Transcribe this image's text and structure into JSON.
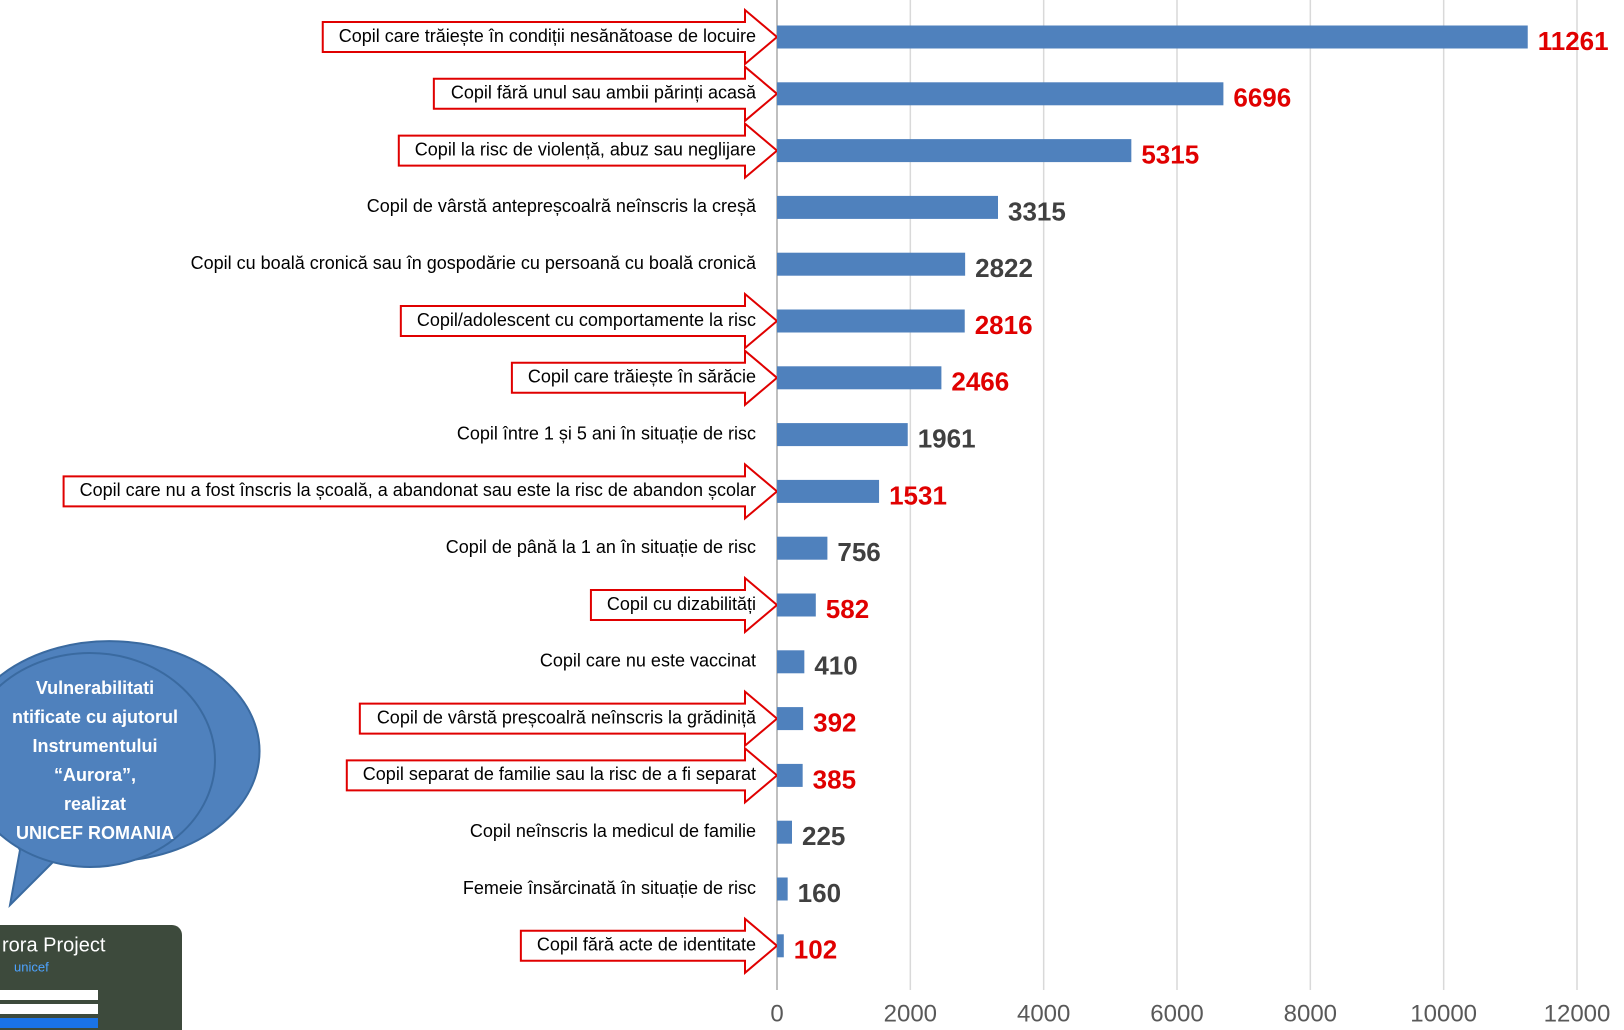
{
  "chart_data": {
    "type": "bar",
    "orientation": "horizontal",
    "categories": [
      "Copil care trăiește în condiții nesănătoase de locuire",
      "Copil fără unul sau ambii părinți acasă",
      "Copil la risc de violență, abuz sau neglijare",
      "Copil de vârstă antepreșcoalră neînscris la creșă",
      "Copil cu boală cronică sau în gospodărie cu persoană cu boală cronică",
      "Copil/adolescent cu comportamente la risc",
      "Copil care trăiește în sărăcie",
      "Copil între 1 și 5 ani în situație de risc",
      "Copil care nu a fost înscris la școală, a abandonat sau este la risc de abandon școlar",
      "Copil de până la 1 an în situație de risc",
      "Copil cu dizabilități",
      "Copil care nu este vaccinat",
      "Copil de vârstă preșcoalră neînscris la grădiniță",
      "Copil separat de familie sau la risc de a fi separat",
      "Copil neînscris la medicul de familie",
      "Femeie însărcinată în situație de risc",
      "Copil fără acte de identitate"
    ],
    "values": [
      11261,
      6696,
      5315,
      3315,
      2822,
      2816,
      2466,
      1961,
      1531,
      756,
      582,
      410,
      392,
      385,
      225,
      160,
      102
    ],
    "color": "#4f81bd",
    "value_label_colors": [
      "#e00000",
      "#e00000",
      "#e00000",
      "#404040",
      "#404040",
      "#e00000",
      "#e00000",
      "#404040",
      "#e00000",
      "#404040",
      "#e00000",
      "#404040",
      "#e00000",
      "#e00000",
      "#404040",
      "#404040",
      "#e00000"
    ],
    "highlighted": [
      true,
      true,
      true,
      false,
      false,
      true,
      true,
      false,
      true,
      false,
      true,
      false,
      true,
      true,
      false,
      false,
      true
    ],
    "xlim": [
      0,
      12000
    ],
    "xticks": [
      0,
      2000,
      4000,
      6000,
      8000,
      10000,
      12000
    ],
    "grid": true,
    "annotation": [
      "Vulnerabilitati",
      "ntificate cu ajutorul",
      "Instrumentului",
      "“Aurora”,",
      "realizat",
      "UNICEF ROMANIA"
    ],
    "thumbnail": {
      "title": "rora Project",
      "brand": "unicef"
    }
  }
}
